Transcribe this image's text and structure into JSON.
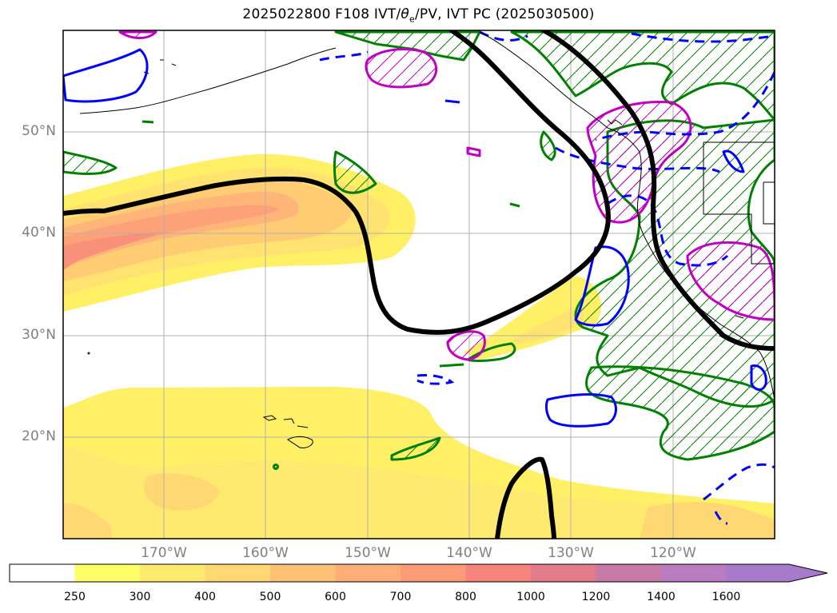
{
  "title": {
    "prefix": "2025022800 F108 IVT/",
    "theta_symbol": "θ",
    "theta_sub": "e",
    "suffix": "/PV, IVT PC (2025030500)"
  },
  "lat_labels": [
    "50°N",
    "40°N",
    "30°N",
    "20°N"
  ],
  "lon_labels": [
    "170°W",
    "160°W",
    "150°W",
    "140°W",
    "130°W",
    "120°W"
  ],
  "colorbar": {
    "ticks": [
      "250",
      "300",
      "400",
      "500",
      "600",
      "700",
      "800",
      "1000",
      "1200",
      "1400",
      "1600"
    ],
    "colors": [
      "#ffff66",
      "#ffea70",
      "#ffd874",
      "#ffc174",
      "#ffae78",
      "#fd9a78",
      "#f5857c",
      "#e27b8a",
      "#c87aa6",
      "#ba7cc0",
      "#a77acb"
    ],
    "extend": "max"
  },
  "colors": {
    "ivt_low": "#ffff66",
    "pv_contour": "#000000",
    "theta_e_pos": "#008000",
    "theta_e_neg": "#0000ff",
    "pv_anomaly": "#c000c0",
    "grid": "#b0b0b0",
    "coast": "#000000"
  }
}
